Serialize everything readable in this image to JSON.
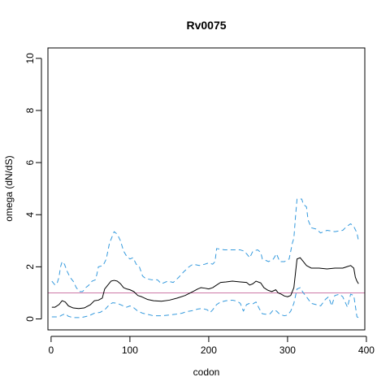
{
  "chart_data": {
    "type": "line",
    "title": "Rv0075",
    "xlabel": "codon",
    "ylabel": "omega (dN/dS)",
    "xlim": [
      -4,
      398
    ],
    "ylim": [
      -0.42,
      10.4
    ],
    "x_ticks": [
      0,
      100,
      200,
      300,
      400
    ],
    "x_tick_labels": [
      "0",
      "100",
      "200",
      "300",
      "400"
    ],
    "y_ticks": [
      0,
      2,
      4,
      6,
      8,
      10
    ],
    "y_tick_labels": [
      "0",
      "2",
      "4",
      "6",
      "8",
      "10"
    ],
    "grid": false,
    "reference_line": {
      "y": 1.0,
      "color": "#cc79a7"
    },
    "series": [
      {
        "role": "median",
        "color": "#000000",
        "dash": "solid",
        "points": [
          [
            1,
            0.45
          ],
          [
            5,
            0.45
          ],
          [
            10,
            0.55
          ],
          [
            14,
            0.7
          ],
          [
            18,
            0.65
          ],
          [
            22,
            0.5
          ],
          [
            28,
            0.42
          ],
          [
            35,
            0.4
          ],
          [
            42,
            0.42
          ],
          [
            50,
            0.55
          ],
          [
            55,
            0.7
          ],
          [
            60,
            0.72
          ],
          [
            65,
            0.8
          ],
          [
            68,
            1.15
          ],
          [
            72,
            1.3
          ],
          [
            76,
            1.45
          ],
          [
            80,
            1.48
          ],
          [
            84,
            1.45
          ],
          [
            88,
            1.35
          ],
          [
            92,
            1.2
          ],
          [
            96,
            1.15
          ],
          [
            100,
            1.12
          ],
          [
            105,
            1.05
          ],
          [
            110,
            0.9
          ],
          [
            115,
            0.85
          ],
          [
            122,
            0.75
          ],
          [
            130,
            0.7
          ],
          [
            140,
            0.68
          ],
          [
            150,
            0.72
          ],
          [
            160,
            0.8
          ],
          [
            170,
            0.9
          ],
          [
            180,
            1.05
          ],
          [
            186,
            1.15
          ],
          [
            190,
            1.2
          ],
          [
            195,
            1.18
          ],
          [
            200,
            1.15
          ],
          [
            205,
            1.2
          ],
          [
            210,
            1.3
          ],
          [
            215,
            1.4
          ],
          [
            222,
            1.42
          ],
          [
            230,
            1.45
          ],
          [
            240,
            1.42
          ],
          [
            248,
            1.4
          ],
          [
            252,
            1.3
          ],
          [
            256,
            1.35
          ],
          [
            260,
            1.45
          ],
          [
            266,
            1.38
          ],
          [
            270,
            1.2
          ],
          [
            275,
            1.1
          ],
          [
            280,
            1.05
          ],
          [
            285,
            1.12
          ],
          [
            288,
            1.0
          ],
          [
            292,
            0.95
          ],
          [
            296,
            0.88
          ],
          [
            300,
            0.85
          ],
          [
            304,
            0.9
          ],
          [
            308,
            1.2
          ],
          [
            310,
            1.75
          ],
          [
            312,
            2.3
          ],
          [
            316,
            2.35
          ],
          [
            320,
            2.2
          ],
          [
            324,
            2.05
          ],
          [
            330,
            1.95
          ],
          [
            340,
            1.95
          ],
          [
            350,
            1.92
          ],
          [
            360,
            1.95
          ],
          [
            370,
            1.95
          ],
          [
            375,
            2.0
          ],
          [
            380,
            2.05
          ],
          [
            384,
            1.95
          ],
          [
            386,
            1.6
          ],
          [
            388,
            1.45
          ],
          [
            390,
            1.35
          ]
        ]
      },
      {
        "role": "upper",
        "color": "#3399dd",
        "dash": "dashed",
        "points": [
          [
            1,
            1.45
          ],
          [
            5,
            1.3
          ],
          [
            8,
            1.4
          ],
          [
            10,
            1.6
          ],
          [
            12,
            2.0
          ],
          [
            14,
            2.2
          ],
          [
            17,
            2.1
          ],
          [
            20,
            1.85
          ],
          [
            24,
            1.6
          ],
          [
            28,
            1.45
          ],
          [
            32,
            1.2
          ],
          [
            36,
            1.05
          ],
          [
            40,
            1.05
          ],
          [
            44,
            1.2
          ],
          [
            48,
            1.3
          ],
          [
            52,
            1.45
          ],
          [
            56,
            1.5
          ],
          [
            58,
            1.7
          ],
          [
            60,
            2.0
          ],
          [
            66,
            2.05
          ],
          [
            70,
            2.3
          ],
          [
            74,
            2.9
          ],
          [
            78,
            3.2
          ],
          [
            80,
            3.35
          ],
          [
            84,
            3.25
          ],
          [
            88,
            3.0
          ],
          [
            92,
            2.6
          ],
          [
            96,
            2.4
          ],
          [
            100,
            2.3
          ],
          [
            104,
            2.35
          ],
          [
            108,
            2.1
          ],
          [
            112,
            2.0
          ],
          [
            116,
            1.65
          ],
          [
            120,
            1.55
          ],
          [
            128,
            1.5
          ],
          [
            135,
            1.5
          ],
          [
            140,
            1.35
          ],
          [
            148,
            1.45
          ],
          [
            155,
            1.4
          ],
          [
            162,
            1.6
          ],
          [
            168,
            1.8
          ],
          [
            175,
            2.0
          ],
          [
            180,
            2.1
          ],
          [
            188,
            2.05
          ],
          [
            195,
            2.1
          ],
          [
            200,
            2.15
          ],
          [
            205,
            2.1
          ],
          [
            208,
            2.2
          ],
          [
            210,
            2.7
          ],
          [
            220,
            2.65
          ],
          [
            230,
            2.65
          ],
          [
            240,
            2.65
          ],
          [
            245,
            2.6
          ],
          [
            248,
            2.5
          ],
          [
            252,
            2.35
          ],
          [
            256,
            2.6
          ],
          [
            262,
            2.65
          ],
          [
            266,
            2.55
          ],
          [
            268,
            2.3
          ],
          [
            272,
            2.25
          ],
          [
            276,
            2.2
          ],
          [
            282,
            2.3
          ],
          [
            286,
            2.5
          ],
          [
            290,
            2.2
          ],
          [
            296,
            2.2
          ],
          [
            302,
            2.3
          ],
          [
            306,
            2.9
          ],
          [
            308,
            3.1
          ],
          [
            310,
            3.9
          ],
          [
            312,
            4.6
          ],
          [
            318,
            4.6
          ],
          [
            320,
            4.4
          ],
          [
            324,
            4.3
          ],
          [
            326,
            3.8
          ],
          [
            330,
            3.5
          ],
          [
            336,
            3.45
          ],
          [
            342,
            3.3
          ],
          [
            350,
            3.4
          ],
          [
            360,
            3.35
          ],
          [
            370,
            3.4
          ],
          [
            375,
            3.55
          ],
          [
            380,
            3.65
          ],
          [
            384,
            3.55
          ],
          [
            388,
            3.3
          ],
          [
            390,
            3.0
          ]
        ]
      },
      {
        "role": "lower",
        "color": "#3399dd",
        "dash": "dashed",
        "points": [
          [
            1,
            0.08
          ],
          [
            10,
            0.08
          ],
          [
            14,
            0.15
          ],
          [
            18,
            0.2
          ],
          [
            22,
            0.1
          ],
          [
            28,
            0.05
          ],
          [
            38,
            0.05
          ],
          [
            48,
            0.12
          ],
          [
            55,
            0.22
          ],
          [
            62,
            0.25
          ],
          [
            68,
            0.35
          ],
          [
            74,
            0.55
          ],
          [
            78,
            0.62
          ],
          [
            84,
            0.6
          ],
          [
            90,
            0.52
          ],
          [
            96,
            0.45
          ],
          [
            100,
            0.5
          ],
          [
            104,
            0.45
          ],
          [
            110,
            0.3
          ],
          [
            116,
            0.22
          ],
          [
            122,
            0.18
          ],
          [
            130,
            0.12
          ],
          [
            140,
            0.12
          ],
          [
            150,
            0.15
          ],
          [
            158,
            0.18
          ],
          [
            166,
            0.22
          ],
          [
            172,
            0.28
          ],
          [
            180,
            0.32
          ],
          [
            186,
            0.38
          ],
          [
            192,
            0.4
          ],
          [
            198,
            0.35
          ],
          [
            202,
            0.25
          ],
          [
            205,
            0.35
          ],
          [
            210,
            0.55
          ],
          [
            215,
            0.65
          ],
          [
            222,
            0.7
          ],
          [
            230,
            0.72
          ],
          [
            236,
            0.68
          ],
          [
            240,
            0.6
          ],
          [
            244,
            0.3
          ],
          [
            248,
            0.55
          ],
          [
            252,
            0.6
          ],
          [
            256,
            0.58
          ],
          [
            260,
            0.65
          ],
          [
            264,
            0.4
          ],
          [
            268,
            0.2
          ],
          [
            272,
            0.18
          ],
          [
            278,
            0.2
          ],
          [
            282,
            0.35
          ],
          [
            286,
            0.3
          ],
          [
            290,
            0.18
          ],
          [
            296,
            0.12
          ],
          [
            300,
            0.15
          ],
          [
            304,
            0.3
          ],
          [
            308,
            0.6
          ],
          [
            312,
            1.15
          ],
          [
            316,
            1.2
          ],
          [
            320,
            1.0
          ],
          [
            324,
            0.85
          ],
          [
            330,
            0.6
          ],
          [
            336,
            0.55
          ],
          [
            342,
            0.5
          ],
          [
            348,
            0.75
          ],
          [
            352,
            0.85
          ],
          [
            356,
            0.5
          ],
          [
            360,
            0.9
          ],
          [
            366,
            0.95
          ],
          [
            370,
            0.85
          ],
          [
            376,
            0.45
          ],
          [
            380,
            0.95
          ],
          [
            384,
            0.9
          ],
          [
            386,
            0.5
          ],
          [
            388,
            0.08
          ],
          [
            390,
            0.05
          ]
        ]
      }
    ]
  }
}
